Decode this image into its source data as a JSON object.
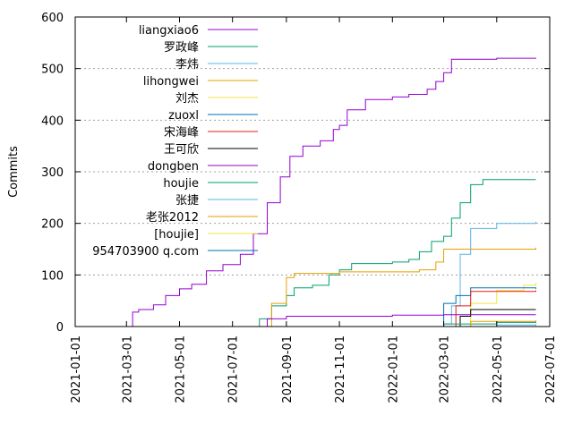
{
  "chart_data": {
    "type": "line",
    "title": "",
    "xlabel": "",
    "ylabel": "Commits",
    "ylim": [
      0,
      600
    ],
    "xlim": [
      "2021-01-01",
      "2022-07-01"
    ],
    "y_ticks": [
      0,
      100,
      200,
      300,
      400,
      500,
      600
    ],
    "x_ticks": [
      "2021-01-01",
      "2021-03-01",
      "2021-05-01",
      "2021-07-01",
      "2021-09-01",
      "2021-11-01",
      "2022-01-01",
      "2022-03-01",
      "2022-05-01",
      "2022-07-01"
    ],
    "grid": "horizontal dotted",
    "legend_position": "top-left",
    "series": [
      {
        "name": "liangxiao6",
        "color": "#9400d3",
        "points": [
          [
            "2021-03-01",
            0
          ],
          [
            "2021-03-08",
            28
          ],
          [
            "2021-03-15",
            33
          ],
          [
            "2021-04-01",
            42
          ],
          [
            "2021-04-15",
            60
          ],
          [
            "2021-05-01",
            73
          ],
          [
            "2021-05-15",
            82
          ],
          [
            "2021-06-01",
            108
          ],
          [
            "2021-06-20",
            120
          ],
          [
            "2021-07-10",
            140
          ],
          [
            "2021-07-25",
            180
          ],
          [
            "2021-08-10",
            240
          ],
          [
            "2021-08-25",
            290
          ],
          [
            "2021-09-05",
            330
          ],
          [
            "2021-09-20",
            350
          ],
          [
            "2021-10-10",
            360
          ],
          [
            "2021-10-25",
            382
          ],
          [
            "2021-11-01",
            390
          ],
          [
            "2021-11-10",
            420
          ],
          [
            "2021-12-01",
            440
          ],
          [
            "2022-01-01",
            445
          ],
          [
            "2022-01-20",
            450
          ],
          [
            "2022-02-10",
            460
          ],
          [
            "2022-02-20",
            475
          ],
          [
            "2022-03-01",
            492
          ],
          [
            "2022-03-10",
            518
          ],
          [
            "2022-05-01",
            520
          ],
          [
            "2022-06-15",
            521
          ]
        ]
      },
      {
        "name": "罗政峰",
        "color": "#009e73",
        "points": [
          [
            "2021-07-20",
            0
          ],
          [
            "2021-08-01",
            15
          ],
          [
            "2021-08-15",
            40
          ],
          [
            "2021-09-01",
            60
          ],
          [
            "2021-09-10",
            75
          ],
          [
            "2021-10-01",
            80
          ],
          [
            "2021-10-20",
            100
          ],
          [
            "2021-11-01",
            110
          ],
          [
            "2021-11-15",
            122
          ],
          [
            "2022-01-01",
            125
          ],
          [
            "2022-01-20",
            130
          ],
          [
            "2022-02-01",
            145
          ],
          [
            "2022-02-15",
            165
          ],
          [
            "2022-03-01",
            175
          ],
          [
            "2022-03-10",
            210
          ],
          [
            "2022-03-20",
            240
          ],
          [
            "2022-04-01",
            275
          ],
          [
            "2022-04-15",
            285
          ],
          [
            "2022-06-15",
            285
          ]
        ]
      },
      {
        "name": "李炜",
        "color": "#56b4e9",
        "points": [
          [
            "2022-02-15",
            0
          ],
          [
            "2022-03-01",
            5
          ],
          [
            "2022-03-10",
            40
          ],
          [
            "2022-03-20",
            140
          ],
          [
            "2022-04-01",
            190
          ],
          [
            "2022-05-01",
            200
          ],
          [
            "2022-06-15",
            203
          ]
        ]
      },
      {
        "name": "lihongwei",
        "color": "#e69f00",
        "points": [
          [
            "2021-07-25",
            0
          ],
          [
            "2021-08-15",
            45
          ],
          [
            "2021-09-01",
            95
          ],
          [
            "2021-09-10",
            103
          ],
          [
            "2021-11-01",
            106
          ],
          [
            "2022-02-01",
            110
          ],
          [
            "2022-02-20",
            125
          ],
          [
            "2022-03-01",
            150
          ],
          [
            "2022-06-15",
            153
          ]
        ]
      },
      {
        "name": "刘杰",
        "color": "#f0e442",
        "points": [
          [
            "2022-03-01",
            0
          ],
          [
            "2022-04-01",
            45
          ],
          [
            "2022-05-01",
            70
          ],
          [
            "2022-06-01",
            80
          ],
          [
            "2022-06-15",
            85
          ]
        ]
      },
      {
        "name": "zuoxl",
        "color": "#0072b2",
        "points": [
          [
            "2022-02-01",
            0
          ],
          [
            "2022-03-01",
            45
          ],
          [
            "2022-03-15",
            60
          ],
          [
            "2022-04-01",
            75
          ],
          [
            "2022-06-15",
            73
          ]
        ]
      },
      {
        "name": "宋海峰",
        "color": "#e51e10",
        "points": [
          [
            "2022-03-01",
            0
          ],
          [
            "2022-03-15",
            40
          ],
          [
            "2022-04-01",
            68
          ],
          [
            "2022-06-15",
            70
          ]
        ]
      },
      {
        "name": "王可欣",
        "color": "#000000",
        "points": [
          [
            "2022-03-10",
            0
          ],
          [
            "2022-03-20",
            20
          ],
          [
            "2022-04-01",
            33
          ],
          [
            "2022-06-15",
            33
          ]
        ]
      },
      {
        "name": "dongben",
        "color": "#9400d3",
        "points": [
          [
            "2021-07-20",
            0
          ],
          [
            "2021-08-10",
            15
          ],
          [
            "2021-09-01",
            20
          ],
          [
            "2022-01-01",
            22
          ],
          [
            "2022-03-01",
            23
          ],
          [
            "2022-06-15",
            23
          ]
        ]
      },
      {
        "name": "houjie",
        "color": "#009e73",
        "points": [
          [
            "2022-01-15",
            0
          ],
          [
            "2022-03-01",
            5
          ],
          [
            "2022-05-01",
            8
          ],
          [
            "2022-06-15",
            10
          ]
        ]
      },
      {
        "name": "张捷",
        "color": "#56b4e9",
        "points": [
          [
            "2022-03-01",
            0
          ],
          [
            "2022-05-01",
            3
          ],
          [
            "2022-06-15",
            5
          ]
        ]
      },
      {
        "name": "老张2012",
        "color": "#e69f00",
        "points": [
          [
            "2022-03-01",
            0
          ],
          [
            "2022-04-01",
            10
          ],
          [
            "2022-06-15",
            12
          ]
        ]
      },
      {
        "name": "[houjie]",
        "color": "#f0e442",
        "points": [
          [
            "2022-03-01",
            0
          ],
          [
            "2022-06-15",
            2
          ]
        ]
      },
      {
        "name": "954703900 q.com",
        "color": "#0072b2",
        "points": [
          [
            "2022-04-01",
            0
          ],
          [
            "2022-06-15",
            1
          ]
        ]
      }
    ]
  }
}
